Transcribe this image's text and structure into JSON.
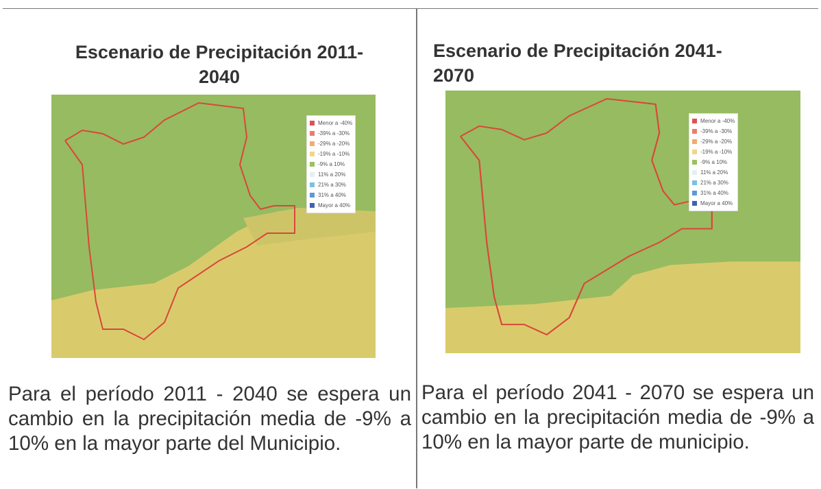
{
  "panels": [
    {
      "title_lines": [
        "Escenario de Precipitación 2011-",
        "2040"
      ],
      "legend": [
        {
          "label": "Menor a -40%",
          "color": "#e0505a"
        },
        {
          "label": "-39% a -30%",
          "color": "#ea7d6a"
        },
        {
          "label": "-29% a -20%",
          "color": "#f2ac6e"
        },
        {
          "label": "-19% a -10%",
          "color": "#f2d58a"
        },
        {
          "label": "-9% a 10%",
          "color": "#9cc064"
        },
        {
          "label": "11% a 20%",
          "color": "#e4f0f0"
        },
        {
          "label": "21% a 30%",
          "color": "#7cc0e4"
        },
        {
          "label": "31% a 40%",
          "color": "#5f98d6"
        },
        {
          "label": "Mayor a 40%",
          "color": "#3f62b4"
        }
      ],
      "text": "Para el período 2011 - 2040 se espera un cambio en la precipitación media de -9% a 10% en la mayor parte del Municipio."
    },
    {
      "title_lines": [
        "Escenario de Precipitación 2041-",
        "2070"
      ],
      "legend": [
        {
          "label": "Menor a -40%",
          "color": "#e0505a"
        },
        {
          "label": "-39% a -30%",
          "color": "#ea7d6a"
        },
        {
          "label": "-29% a -20%",
          "color": "#f2ac6e"
        },
        {
          "label": "-19% a -10%",
          "color": "#f2d58a"
        },
        {
          "label": "-9% a 10%",
          "color": "#9cc064"
        },
        {
          "label": "11% a 20%",
          "color": "#e4f0f0"
        },
        {
          "label": "21% a 30%",
          "color": "#7cc0e4"
        },
        {
          "label": "31% a 40%",
          "color": "#5f98d6"
        },
        {
          "label": "Mayor a 40%",
          "color": "#3f62b4"
        }
      ],
      "text": "Para el período 2041 - 2070 se espera un cambio en la precipitación media de -9% a 10% en la mayor parte de municipio."
    }
  ]
}
